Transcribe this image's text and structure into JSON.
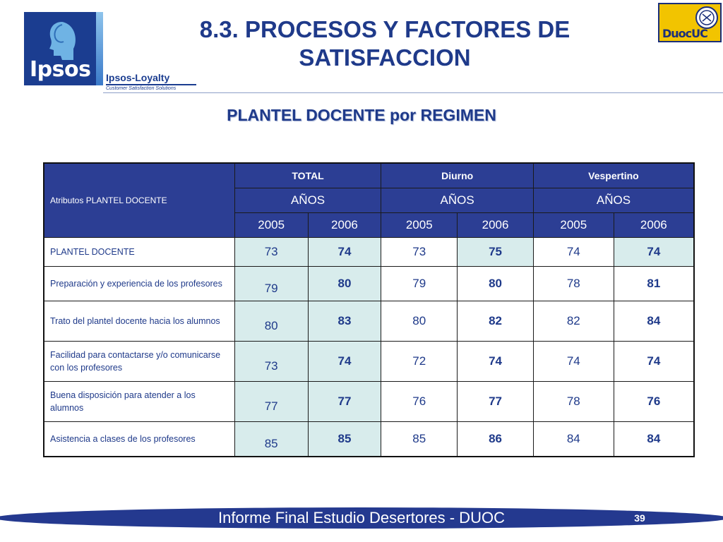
{
  "header": {
    "title_line1": "8.3. PROCESOS Y FACTORES DE",
    "title_line2": "SATISFACCION",
    "subtitle": "PLANTEL DOCENTE por REGIMEN"
  },
  "logos": {
    "ipsos_word": "Ipsos",
    "loyalty_name": "Ipsos-Loyalty",
    "loyalty_tagline": "Customer Satisfaction Solutions",
    "duoc_word": "DuocUC"
  },
  "table": {
    "attr_header": "Atributos PLANTEL DOCENTE",
    "groups": [
      "TOTAL",
      "Diurno",
      "Vespertino"
    ],
    "anos_label": "AÑOS",
    "years": [
      "2005",
      "2006",
      "2005",
      "2006",
      "2005",
      "2006"
    ],
    "rows": [
      {
        "label": "PLANTEL DOCENTE",
        "values": [
          "73",
          "74",
          "73",
          "75",
          "74",
          "74"
        ]
      },
      {
        "label": "Preparación y experiencia de los profesores",
        "values": [
          "79",
          "80",
          "79",
          "80",
          "78",
          "81"
        ]
      },
      {
        "label": "Trato del plantel docente hacia los alumnos",
        "values": [
          "80",
          "83",
          "80",
          "82",
          "82",
          "84"
        ]
      },
      {
        "label": "Facilidad para contactarse y/o comunicarse con los profesores",
        "values": [
          "73",
          "74",
          "72",
          "74",
          "74",
          "74"
        ]
      },
      {
        "label": "Buena disposición para atender a los alumnos",
        "values": [
          "77",
          "77",
          "76",
          "77",
          "78",
          "76"
        ]
      },
      {
        "label": "Asistencia a clases de los profesores",
        "values": [
          "85",
          "85",
          "85",
          "86",
          "84",
          "84"
        ]
      }
    ]
  },
  "footer": {
    "text": "Informe Final Estudio Desertores - DUOC",
    "page_number": "39"
  },
  "colors": {
    "header_blue": "#2c3e94",
    "text_blue": "#1f3a8a",
    "cell_highlight": "#d8ecec",
    "duoc_yellow": "#f2c400"
  }
}
